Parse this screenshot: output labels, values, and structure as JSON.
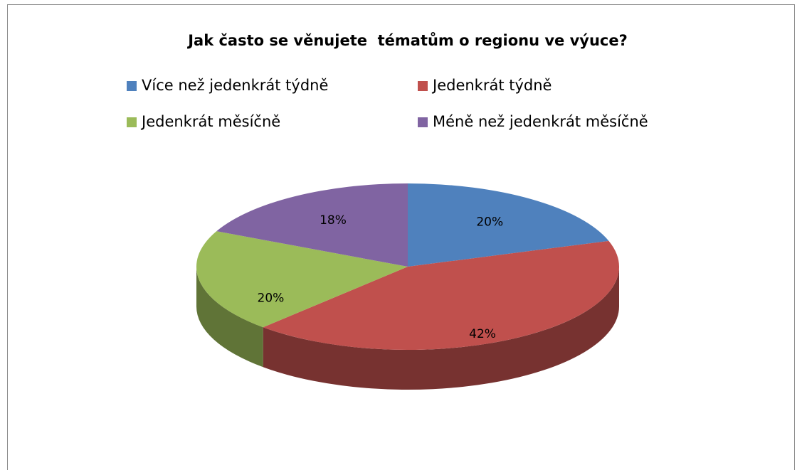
{
  "chart_data": {
    "type": "pie",
    "title": "Jak často se věnujete  tématům o regionu ve výuce?",
    "categories": [
      "Více než jedenkrát týdně",
      "Jedenkrát týdně",
      "Jedenkrát měsíčně",
      "Méně než jedenkrát měsíčně"
    ],
    "values": [
      20,
      42,
      20,
      18
    ],
    "value_labels": [
      "20%",
      "42%",
      "20%",
      "18%"
    ],
    "colors": [
      "#4f81bd",
      "#c0504d",
      "#9bbb59",
      "#8064a2"
    ],
    "legend": "top"
  }
}
